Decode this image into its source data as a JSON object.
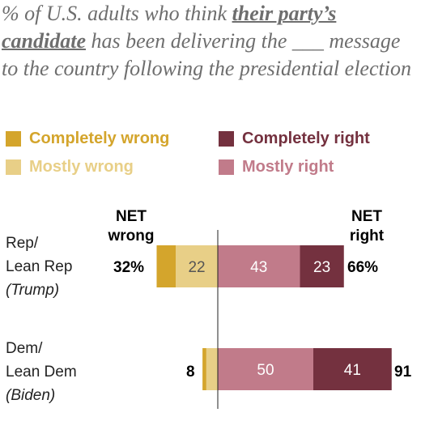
{
  "title": {
    "part1": "% of U.S. adults who think ",
    "highlight": "their party’s candidate",
    "part2": " has been delivering the ___ message to the country following the presidential election"
  },
  "colors": {
    "completely_wrong": "#d4a52c",
    "mostly_wrong": "#e8cf87",
    "mostly_right": "#c17b8a",
    "completely_right": "#74313f",
    "title_text": "#6e6e6e"
  },
  "legend": [
    {
      "key": "completely_wrong",
      "label": "Completely wrong"
    },
    {
      "key": "completely_right",
      "label": "Completely right"
    },
    {
      "key": "mostly_wrong",
      "label": "Mostly wrong"
    },
    {
      "key": "mostly_right",
      "label": "Mostly right"
    }
  ],
  "net_headers": {
    "wrong_line1": "NET",
    "wrong_line2": "wrong",
    "right_line1": "NET",
    "right_line2": "right"
  },
  "chart_data": {
    "type": "bar",
    "orientation": "horizontal-diverging",
    "categories": [
      {
        "line1": "Rep/",
        "line2": "Lean Rep",
        "line3": "(Trump)"
      },
      {
        "line1": "Dem/",
        "line2": "Lean Dem",
        "line3": "(Biden)"
      }
    ],
    "series": [
      {
        "key": "completely_wrong",
        "name": "Completely wrong",
        "side": "left",
        "values": [
          10,
          2
        ],
        "labels": [
          "",
          ""
        ]
      },
      {
        "key": "mostly_wrong",
        "name": "Mostly wrong",
        "side": "left",
        "values": [
          22,
          6
        ],
        "labels": [
          "22",
          ""
        ]
      },
      {
        "key": "mostly_right",
        "name": "Mostly right",
        "side": "right",
        "values": [
          43,
          50
        ],
        "labels": [
          "43",
          "50"
        ]
      },
      {
        "key": "completely_right",
        "name": "Completely right",
        "side": "right",
        "values": [
          23,
          41
        ],
        "labels": [
          "23",
          "41"
        ]
      }
    ],
    "net_wrong": [
      "32%",
      "8"
    ],
    "net_right": [
      "66%",
      "91"
    ]
  }
}
